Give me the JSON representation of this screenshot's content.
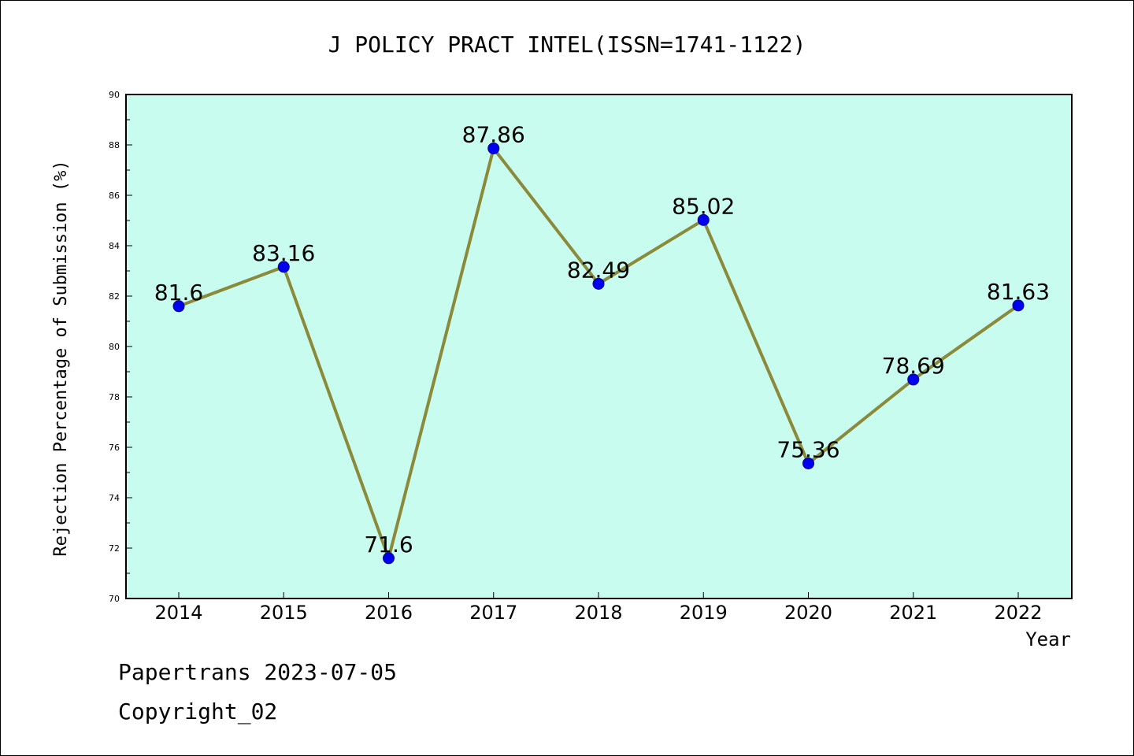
{
  "chart_data": {
    "type": "line",
    "title": "J POLICY PRACT INTEL(ISSN=1741-1122)",
    "xlabel": "Year",
    "ylabel": "Rejection Percentage of Submission (%)",
    "categories": [
      "2014",
      "2015",
      "2016",
      "2017",
      "2018",
      "2019",
      "2020",
      "2021",
      "2022"
    ],
    "values": [
      81.6,
      83.16,
      71.6,
      87.86,
      82.49,
      85.02,
      75.36,
      78.69,
      81.63
    ],
    "data_labels": [
      "81.6",
      "83.16",
      "71.6",
      "87.86",
      "82.49",
      "85.02",
      "75.36",
      "78.69",
      "81.63"
    ],
    "ylim": [
      70,
      90
    ],
    "yticks": [
      "70",
      "72",
      "74",
      "76",
      "78",
      "80",
      "82",
      "84",
      "86",
      "88",
      "90"
    ],
    "grid": false,
    "legend": "none",
    "colors": {
      "plot_bg": "#c8fcee",
      "line": "#8b8a3a",
      "marker": "#0000ee",
      "marker_edge": "#00008b",
      "axis": "#000000"
    }
  },
  "footer": {
    "line1": "Papertrans 2023-07-05",
    "line2": "Copyright_02"
  }
}
